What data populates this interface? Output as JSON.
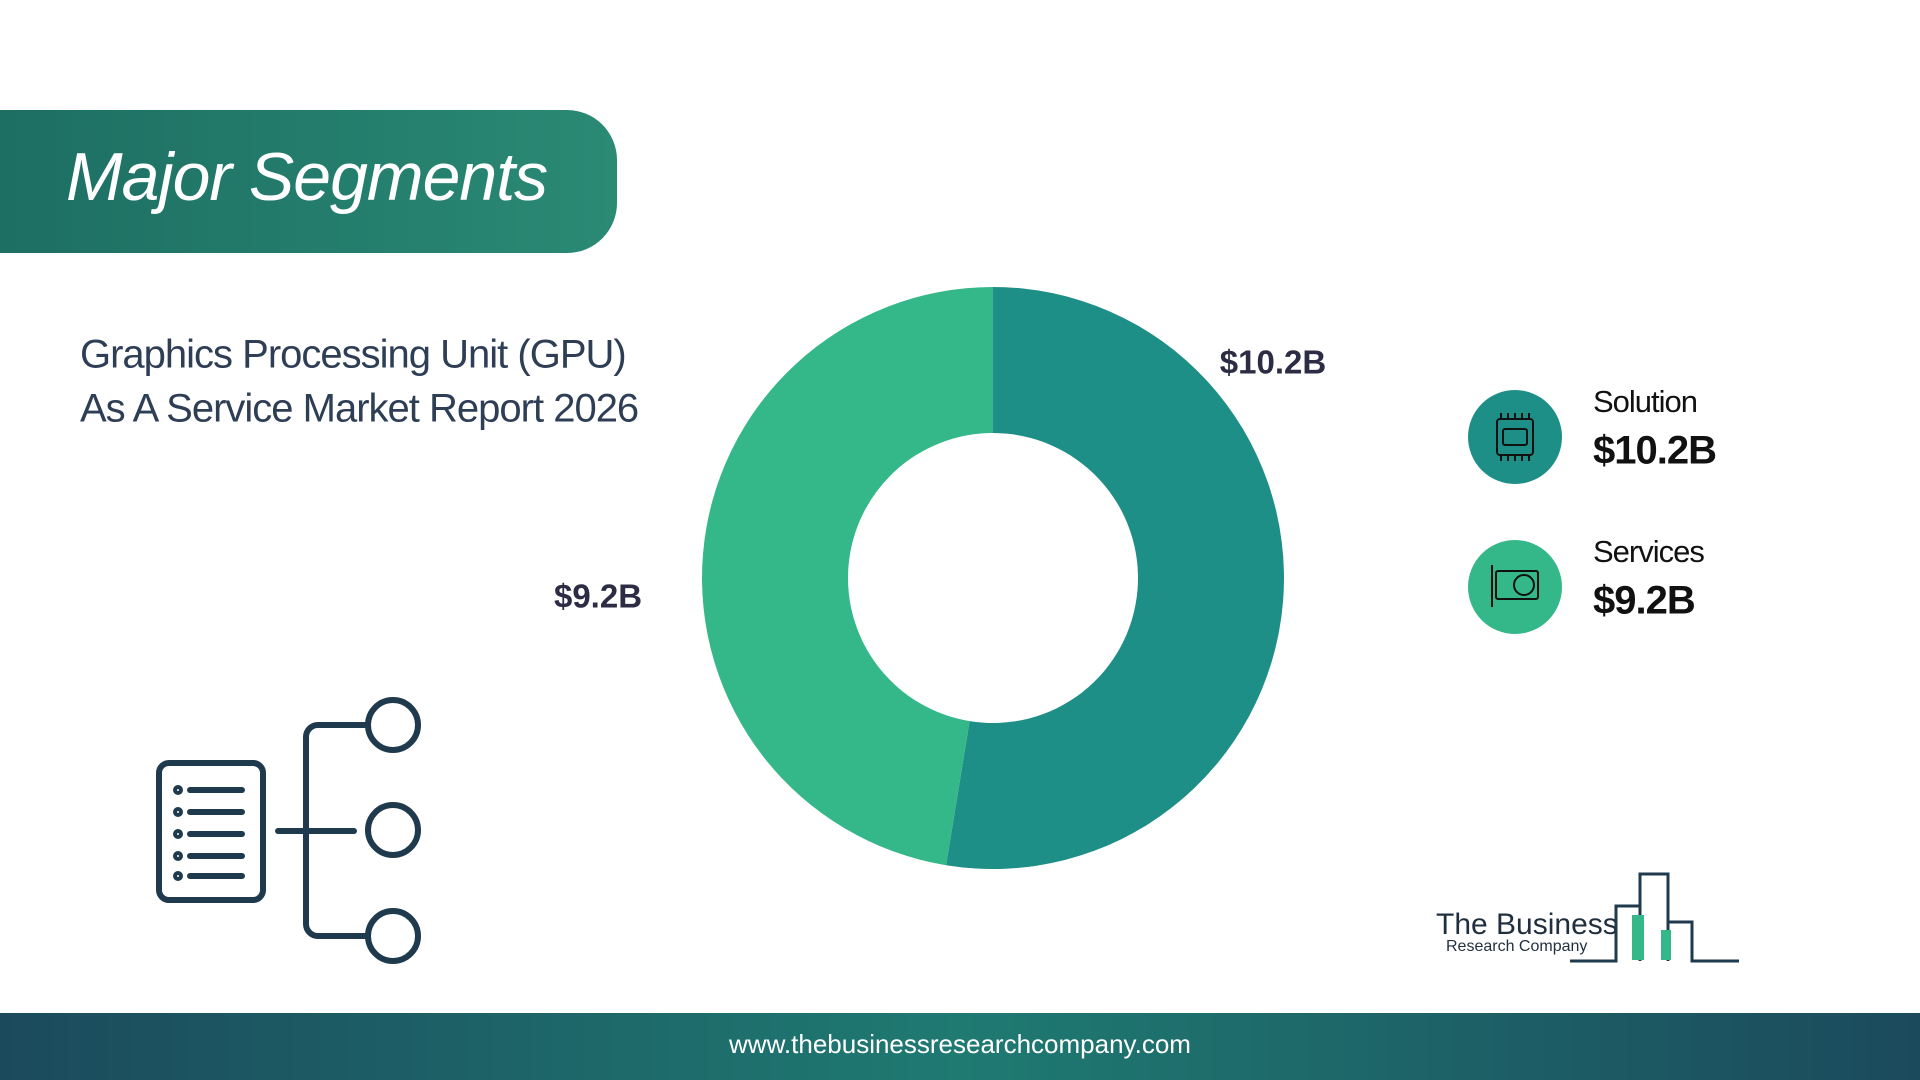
{
  "chart_data": {
    "type": "pie",
    "title": "Major Segments",
    "subtitle": [
      "Graphics Processing Unit (GPU)",
      "As A Service Market Report 2026"
    ],
    "categories": [
      "Solution",
      "Services"
    ],
    "values": [
      10.2,
      9.2
    ],
    "value_labels": [
      "$10.2B",
      "$9.2B"
    ],
    "colors": [
      "#1e8f87",
      "#35b889"
    ],
    "donut": true
  },
  "logo": [
    "The Business",
    "Research Company"
  ],
  "footer": "www.thebusinessresearchcompany.com"
}
